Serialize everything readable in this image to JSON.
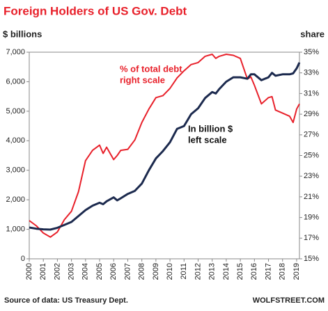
{
  "chart_data": {
    "type": "line",
    "title": "Foreign Holders of US Gov. Debt",
    "y_label": "$ billions",
    "y2_label": "share",
    "source": "Source of data: US Treasury Dept.",
    "credit": "WOLFSTREET.COM",
    "x": [
      2000,
      2000.5,
      2001,
      2001.5,
      2002,
      2002.5,
      2003,
      2003.5,
      2004,
      2004.5,
      2005,
      2005.25,
      2005.5,
      2006,
      2006.25,
      2006.5,
      2007,
      2007.5,
      2008,
      2008.5,
      2009,
      2009.5,
      2010,
      2010.5,
      2011,
      2011.5,
      2012,
      2012.5,
      2013,
      2013.25,
      2013.5,
      2014,
      2014.5,
      2015,
      2015.5,
      2015.75,
      2016,
      2016.5,
      2017,
      2017.25,
      2017.5,
      2018,
      2018.5,
      2018.75,
      2019,
      2019.2
    ],
    "series": [
      {
        "name": "% of total debt",
        "note": "right scale",
        "color": "#e8202a",
        "axis": "y2",
        "values": [
          18.7,
          18.2,
          17.5,
          17.1,
          17.6,
          18.8,
          19.6,
          21.5,
          24.5,
          25.5,
          26.0,
          25.2,
          25.8,
          24.6,
          25.0,
          25.5,
          25.6,
          26.5,
          28.2,
          29.5,
          30.6,
          30.8,
          31.5,
          32.5,
          33.2,
          33.8,
          34.0,
          34.6,
          34.8,
          34.4,
          34.6,
          34.8,
          34.7,
          34.4,
          32.4,
          32.6,
          31.8,
          30.0,
          30.6,
          30.7,
          29.4,
          29.1,
          28.8,
          28.2,
          29.5,
          30.0
        ]
      },
      {
        "name": "In billion $",
        "note": "left scale",
        "color": "#1c2a4e",
        "values": [
          1060,
          1020,
          1000,
          990,
          1050,
          1150,
          1250,
          1450,
          1650,
          1800,
          1900,
          1850,
          1950,
          2080,
          1980,
          2050,
          2200,
          2300,
          2550,
          3000,
          3400,
          3650,
          3950,
          4400,
          4500,
          4900,
          5100,
          5450,
          5650,
          5600,
          5750,
          6000,
          6150,
          6150,
          6100,
          6250,
          6250,
          6050,
          6150,
          6300,
          6200,
          6250,
          6250,
          6280,
          6450,
          6650
        ]
      }
    ],
    "xlim": [
      2000,
      2019.2
    ],
    "xticks": [
      2000,
      2001,
      2002,
      2003,
      2004,
      2005,
      2006,
      2007,
      2008,
      2009,
      2010,
      2011,
      2012,
      2013,
      2014,
      2015,
      2016,
      2017,
      2018,
      2019
    ],
    "ylim": [
      0,
      7000
    ],
    "yticks": [
      0,
      {
        "value": 1000,
        "label": "1,000"
      },
      {
        "value": 2000,
        "label": "2,000"
      },
      {
        "value": 3000,
        "label": "3,000"
      },
      {
        "value": 4000,
        "label": "4,000"
      },
      {
        "value": 5000,
        "label": "5,000"
      },
      {
        "value": 6000,
        "label": "6,000"
      },
      {
        "value": 7000,
        "label": "7,000"
      }
    ],
    "y2lim": [
      15,
      35
    ],
    "y2ticks": [
      {
        "value": 15,
        "label": "15%"
      },
      {
        "value": 17,
        "label": "17%"
      },
      {
        "value": 19,
        "label": "19%"
      },
      {
        "value": 21,
        "label": "21%"
      },
      {
        "value": 23,
        "label": "23%"
      },
      {
        "value": 25,
        "label": "25%"
      },
      {
        "value": 27,
        "label": "27%"
      },
      {
        "value": 29,
        "label": "29%"
      },
      {
        "value": 31,
        "label": "31%"
      },
      {
        "value": 33,
        "label": "33%"
      },
      {
        "value": 35,
        "label": "35%"
      }
    ]
  }
}
